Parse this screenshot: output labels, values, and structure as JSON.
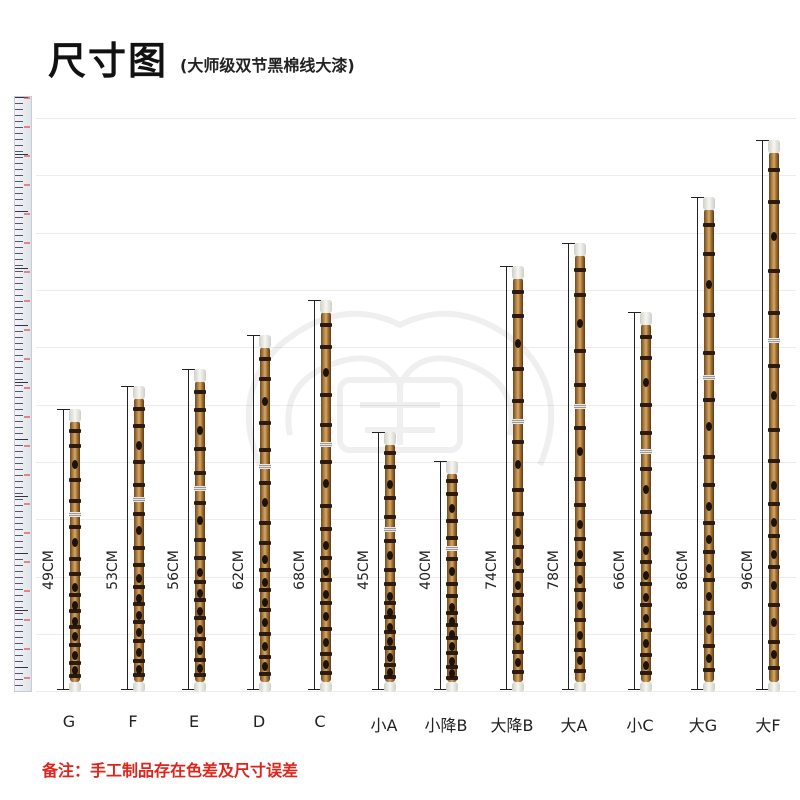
{
  "title": "尺寸图",
  "subtitle": "(大师级双节黑棉线大漆)",
  "note": "备注：手工制品存在色差及尺寸误差",
  "flutes": [
    {
      "key": "G",
      "length": "49CM",
      "cm": 49
    },
    {
      "key": "F",
      "length": "53CM",
      "cm": 53
    },
    {
      "key": "E",
      "length": "56CM",
      "cm": 56
    },
    {
      "key": "D",
      "length": "62CM",
      "cm": 62
    },
    {
      "key": "C",
      "length": "68CM",
      "cm": 68
    },
    {
      "key": "小A",
      "length": "45CM",
      "cm": 45
    },
    {
      "key": "小降B",
      "length": "40CM",
      "cm": 40
    },
    {
      "key": "大降B",
      "length": "74CM",
      "cm": 74
    },
    {
      "key": "大A",
      "length": "78CM",
      "cm": 78
    },
    {
      "key": "小C",
      "length": "66CM",
      "cm": 66
    },
    {
      "key": "大G",
      "length": "86CM",
      "cm": 86
    },
    {
      "key": "大F",
      "length": "96CM",
      "cm": 96
    }
  ],
  "colors": {
    "note": "#e0231b",
    "flute_body": "#b98a4b",
    "band": "#2b1a10"
  }
}
